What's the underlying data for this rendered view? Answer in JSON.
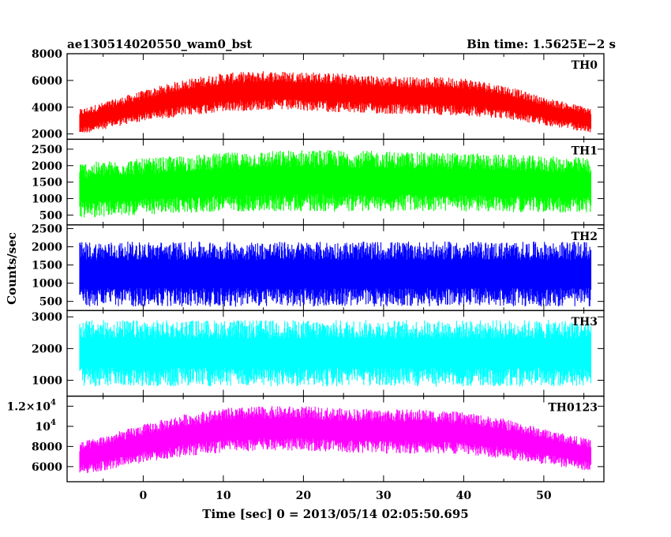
{
  "header": {
    "title": "ae130514020550_wam0_bst",
    "bin_time": "Bin time: 1.5625E−2 s"
  },
  "chart_data": {
    "type": "line",
    "xlabel": "Time [sec] 0 = 2013/05/14 02:05:50.695",
    "ylabel": "Counts/sec",
    "xlim": [
      -9.5,
      57.5
    ],
    "x_ticks": [
      0,
      10,
      20,
      30,
      40,
      50
    ],
    "x_data_range": [
      -8,
      56
    ],
    "panels": [
      {
        "name": "TH0",
        "color": "#ff0000",
        "ylim": [
          1600,
          8000
        ],
        "yticks": [
          {
            "v": 2000,
            "t": "2000"
          },
          {
            "v": 4000,
            "t": "4000"
          },
          {
            "v": 6000,
            "t": "6000"
          },
          {
            "v": 8000,
            "t": "8000"
          }
        ],
        "envelope": {
          "x": [
            -8,
            -4,
            0,
            5,
            10,
            15,
            20,
            25,
            30,
            35,
            40,
            45,
            50,
            56
          ],
          "mean": [
            2900,
            3500,
            4100,
            4700,
            5100,
            5250,
            5200,
            5050,
            4900,
            4850,
            4800,
            4400,
            3700,
            3000
          ],
          "halfwidth": [
            900,
            1000,
            1100,
            1300,
            1400,
            1400,
            1400,
            1400,
            1350,
            1350,
            1350,
            1200,
            1000,
            900
          ]
        }
      },
      {
        "name": "TH1",
        "color": "#00ff00",
        "ylim": [
          200,
          2800
        ],
        "yticks": [
          {
            "v": 500,
            "t": "500"
          },
          {
            "v": 1000,
            "t": "1000"
          },
          {
            "v": 1500,
            "t": "1500"
          },
          {
            "v": 2000,
            "t": "2000"
          },
          {
            "v": 2500,
            "t": "2500"
          }
        ],
        "envelope": {
          "x": [
            -8,
            10,
            20,
            40,
            56
          ],
          "mean": [
            1250,
            1500,
            1550,
            1500,
            1400
          ],
          "halfwidth": [
            800,
            850,
            900,
            850,
            800
          ]
        }
      },
      {
        "name": "TH2",
        "color": "#0000ff",
        "ylim": [
          250,
          2600
        ],
        "yticks": [
          {
            "v": 500,
            "t": "500"
          },
          {
            "v": 1000,
            "t": "1000"
          },
          {
            "v": 1500,
            "t": "1500"
          },
          {
            "v": 2000,
            "t": "2000"
          },
          {
            "v": 2500,
            "t": "2500"
          }
        ],
        "envelope": {
          "x": [
            -8,
            56
          ],
          "mean": [
            1250,
            1250
          ],
          "halfwidth": [
            850,
            850
          ]
        }
      },
      {
        "name": "TH3",
        "color": "#00ffff",
        "ylim": [
          500,
          3200
        ],
        "yticks": [
          {
            "v": 1000,
            "t": "1000"
          },
          {
            "v": 2000,
            "t": "2000"
          },
          {
            "v": 3000,
            "t": "3000"
          }
        ],
        "envelope": {
          "x": [
            -8,
            56
          ],
          "mean": [
            1850,
            1850
          ],
          "halfwidth": [
            1000,
            1000
          ]
        }
      },
      {
        "name": "TH0123",
        "color": "#ff00ff",
        "ylim": [
          4500,
          13000
        ],
        "yticks": [
          {
            "v": 6000,
            "t": "6000",
            "sup": ""
          },
          {
            "v": 8000,
            "t": "8000",
            "sup": ""
          },
          {
            "v": 10000,
            "t": "10",
            "sup": "4"
          },
          {
            "v": 12000,
            "t": "1.2×10",
            "sup": "4"
          }
        ],
        "envelope": {
          "x": [
            -8,
            -4,
            0,
            5,
            10,
            15,
            20,
            25,
            30,
            35,
            40,
            45,
            50,
            56
          ],
          "mean": [
            6800,
            7500,
            8300,
            9100,
            9600,
            9800,
            9800,
            9600,
            9500,
            9500,
            9300,
            8800,
            8000,
            7100
          ],
          "halfwidth": [
            1500,
            1700,
            1800,
            2000,
            2100,
            2100,
            2100,
            2100,
            2100,
            2100,
            2000,
            1900,
            1700,
            1500
          ]
        }
      }
    ],
    "grid": false,
    "legend": "none"
  }
}
